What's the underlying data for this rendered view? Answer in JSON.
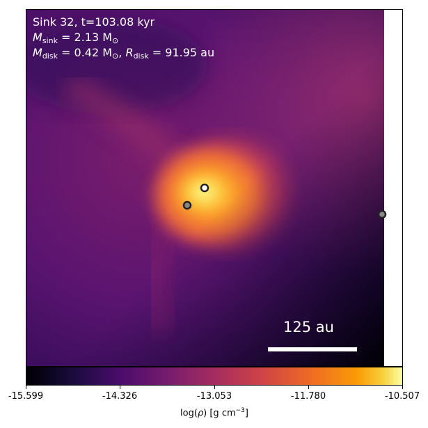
{
  "title": {
    "sink_line": "Sink 32, t=103.08 kyr",
    "msink_symbol": "M",
    "msink_sub": "sink",
    "msink_value": " = 2.13 M",
    "msun_symbol": "⊙",
    "mdisk_symbol": "M",
    "mdisk_sub": "disk",
    "mdisk_value": " = 0.42 M",
    "rdisk_symbol": "R",
    "rdisk_sub": "disk",
    "rdisk_value": " = 91.95 au",
    "comma": ", "
  },
  "scale_bar": {
    "label": "125 au"
  },
  "colorbar": {
    "ticks": [
      "-15.599",
      "-14.326",
      "-13.053",
      "-11.780",
      "-10.507"
    ],
    "label_prefix": "log(",
    "label_rho": "ρ",
    "label_mid": ") [g cm",
    "label_exp": "−3",
    "label_suffix": "]",
    "colormap": "inferno"
  },
  "sinks": [
    {
      "name": "primary-sink",
      "fill": "#ffffff"
    },
    {
      "name": "secondary-sink",
      "fill": "#888888"
    },
    {
      "name": "edge-sink",
      "fill": "#888888"
    }
  ]
}
